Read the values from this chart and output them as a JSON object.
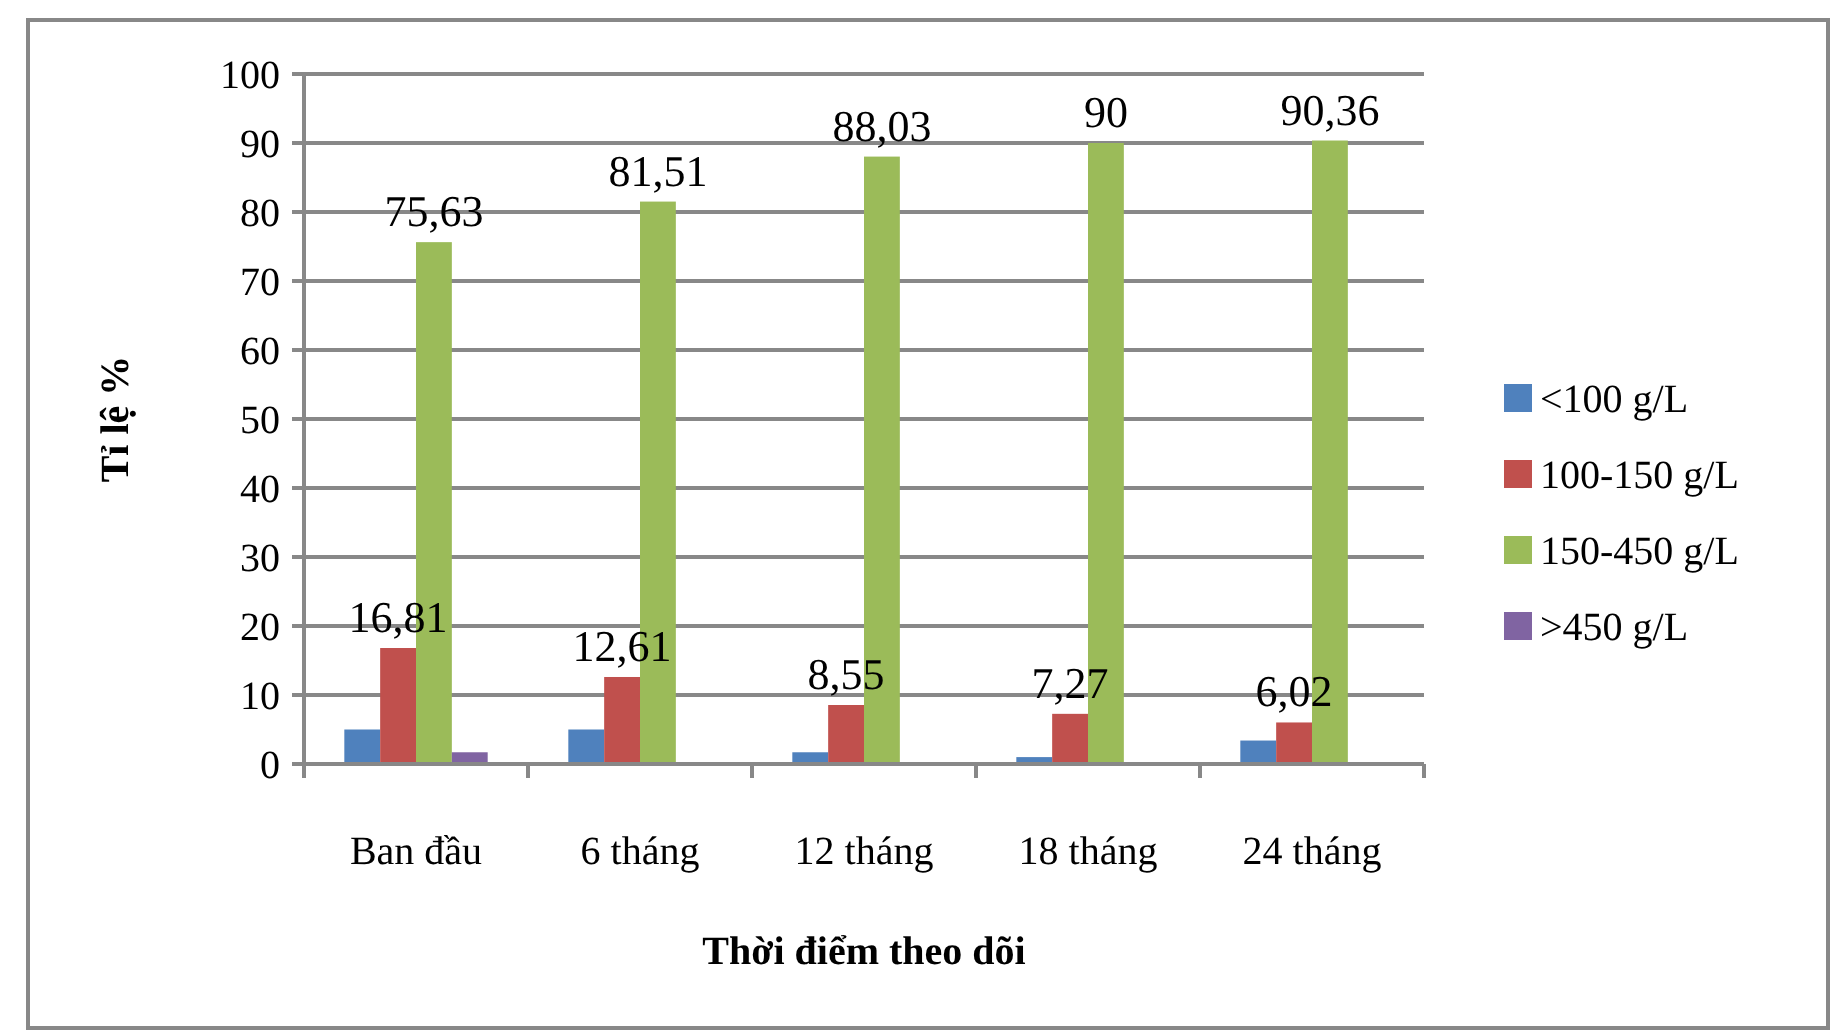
{
  "chart_data": {
    "type": "bar",
    "xlabel": "Thời điểm theo dõi",
    "ylabel": "Tỉ lệ %",
    "categories": [
      "Ban đầu",
      "6 tháng",
      "12 tháng",
      "18 tháng",
      "24 tháng"
    ],
    "series": [
      {
        "name": "<100 g/L",
        "color": "#4f81bd",
        "values": [
          5,
          5,
          1.7,
          1,
          3.4
        ]
      },
      {
        "name": "100-150 g/L",
        "color": "#c0504d",
        "values": [
          16.81,
          12.61,
          8.55,
          7.27,
          6.02
        ],
        "value_labels": [
          "16,81",
          "12,61",
          "8,55",
          "7,27",
          "6,02"
        ]
      },
      {
        "name": "150-450 g/L",
        "color": "#9bbb59",
        "values": [
          75.63,
          81.51,
          88.03,
          90,
          90.36
        ],
        "value_labels": [
          "75,63",
          "81,51",
          "88,03",
          "90",
          "90,36"
        ]
      },
      {
        "name": ">450 g/L",
        "color": "#8064a2",
        "values": [
          1.7,
          0,
          0,
          0,
          0
        ]
      }
    ],
    "ylim": [
      0,
      100
    ],
    "yticks": [
      0,
      10,
      20,
      30,
      40,
      50,
      60,
      70,
      80,
      90,
      100
    ],
    "grid": "y",
    "legend": "right"
  }
}
